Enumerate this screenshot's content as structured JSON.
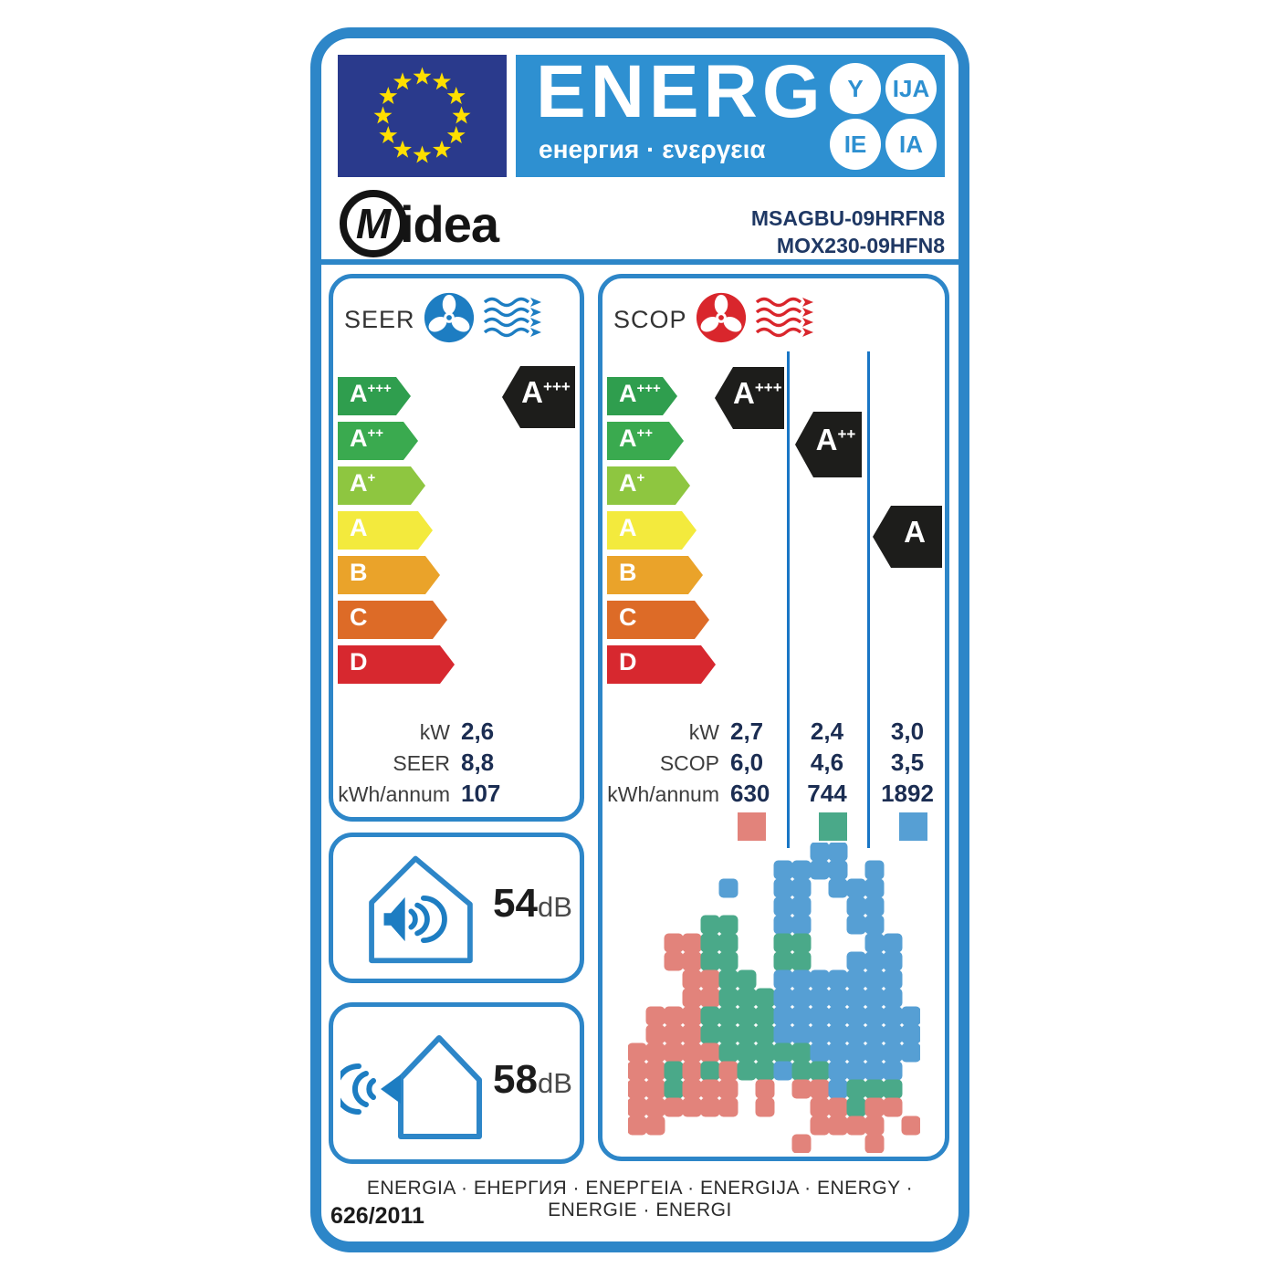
{
  "header": {
    "energ_title": "ENERG",
    "energ_subtitle": "енергия · ενεργεια",
    "badges": [
      "Y",
      "IJA",
      "IE",
      "IA"
    ]
  },
  "brand": "Midea",
  "models": [
    "MSAGBU-09HRFN8",
    "MOX230-09HFN8"
  ],
  "scale": [
    {
      "base": "A",
      "sup": "+++",
      "color": "#2f9e4e"
    },
    {
      "base": "A",
      "sup": "++",
      "color": "#3aaa4f"
    },
    {
      "base": "A",
      "sup": "+",
      "color": "#8ec640"
    },
    {
      "base": "A",
      "sup": "",
      "color": "#f3ea3d"
    },
    {
      "base": "B",
      "sup": "",
      "color": "#eaa32a"
    },
    {
      "base": "C",
      "sup": "",
      "color": "#dd6b27"
    },
    {
      "base": "D",
      "sup": "",
      "color": "#d7282f"
    }
  ],
  "seer_panel": {
    "title": "SEER",
    "fan_color": "#1d7dc2",
    "rating": {
      "base": "A",
      "sup": "+++"
    },
    "rows": [
      {
        "label": "kW",
        "values": [
          "2,6"
        ]
      },
      {
        "label": "SEER",
        "values": [
          "8,8"
        ]
      },
      {
        "label": "kWh/annum",
        "values": [
          "107"
        ]
      }
    ]
  },
  "scop_panel": {
    "title": "SCOP",
    "fan_color": "#d9262c",
    "ratings": [
      {
        "base": "A",
        "sup": "+++"
      },
      {
        "base": "A",
        "sup": "++"
      },
      {
        "base": "A",
        "sup": ""
      }
    ],
    "rows": [
      {
        "label": "kW",
        "values": [
          "2,7",
          "2,4",
          "3,0"
        ]
      },
      {
        "label": "SCOP",
        "values": [
          "6,0",
          "4,6",
          "3,5"
        ]
      },
      {
        "label": "kWh/annum",
        "values": [
          "630",
          "744",
          "1892"
        ]
      }
    ],
    "zone_colors": {
      "warm": "#e2837b",
      "average": "#4aa989",
      "cold": "#569fd4"
    }
  },
  "noise": [
    {
      "value": "54",
      "unit": "dB"
    },
    {
      "value": "58",
      "unit": "dB"
    }
  ],
  "footer": {
    "energy_words": "ENERGIA · ЕНЕРГИЯ · ΕΝΕΡΓΕΙΑ · ENERGIJA · ENERGY · ENERGIE · ENERGI",
    "regulation": "626/2011"
  },
  "colors": {
    "accent_blue": "#2d86c8",
    "header_blue": "#2e90d1",
    "flag_blue": "#2a3a8c",
    "star_yellow": "#ffdf00",
    "black_arrow": "#1d1d1b"
  }
}
